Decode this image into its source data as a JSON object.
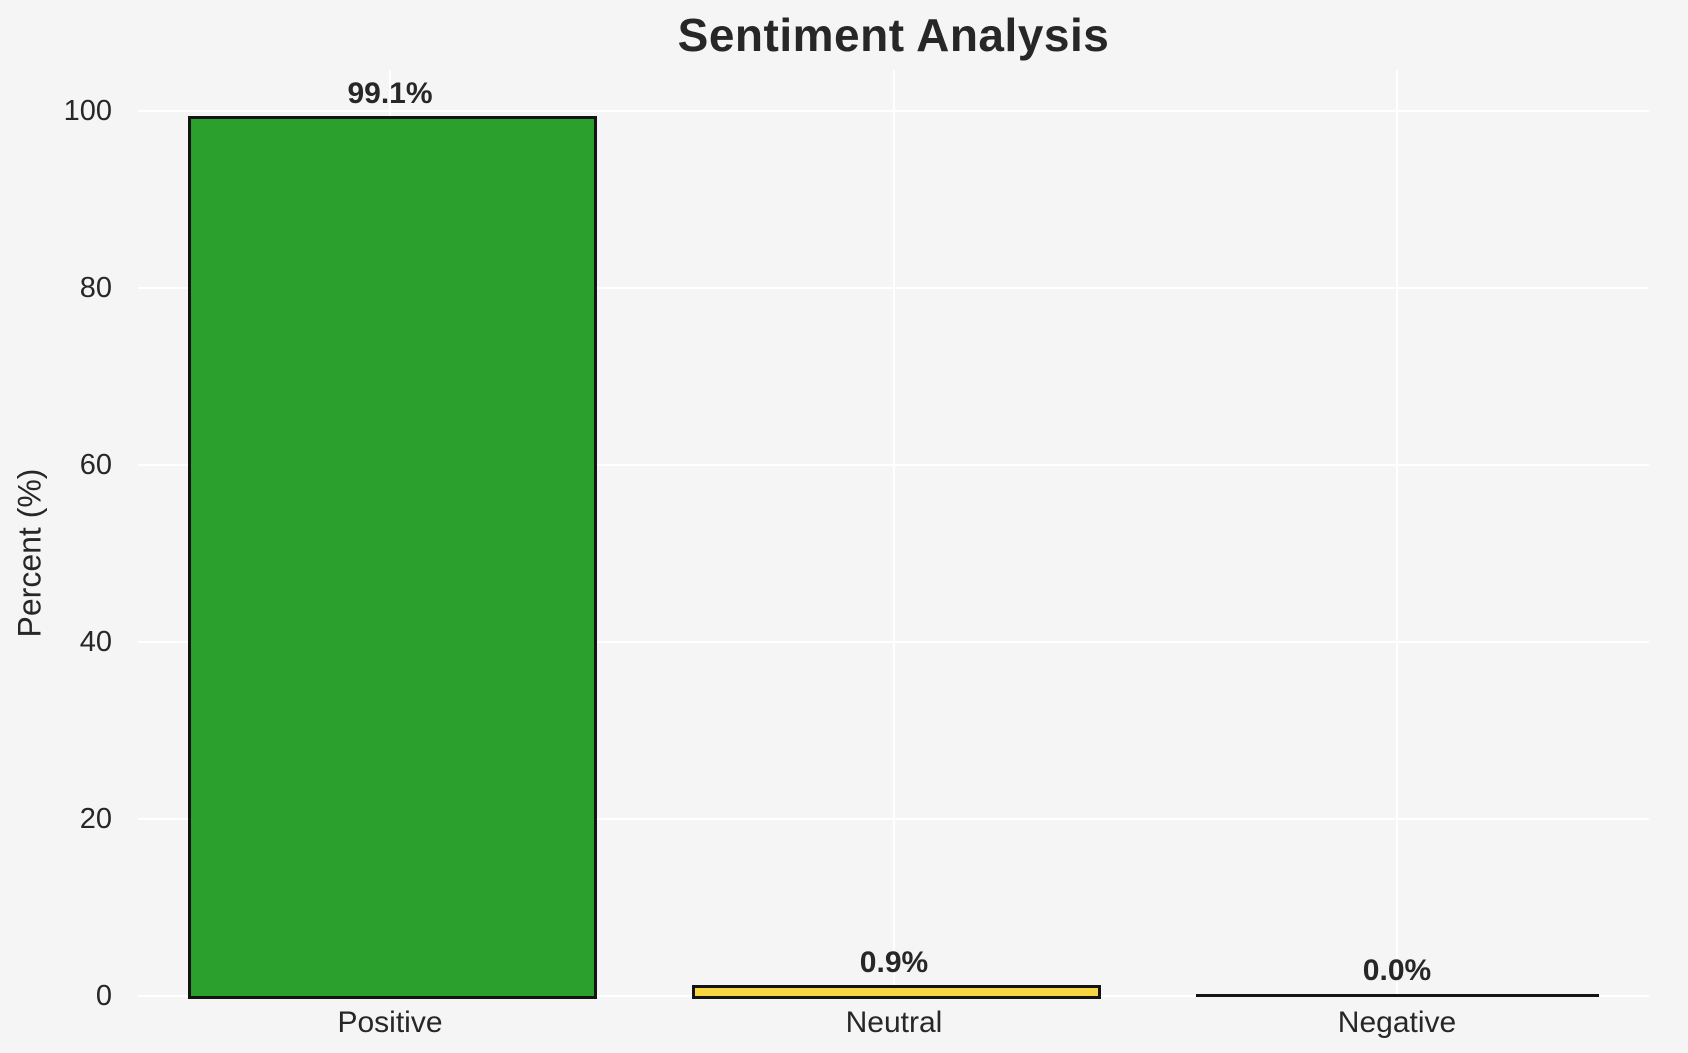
{
  "chart_data": {
    "type": "bar",
    "title": "Sentiment Analysis",
    "xlabel": "",
    "ylabel": "Percent (%)",
    "categories": [
      "Positive",
      "Neutral",
      "Negative"
    ],
    "values": [
      99.1,
      0.9,
      0.0
    ],
    "bar_labels": [
      "99.1%",
      "0.9%",
      "0.0%"
    ],
    "bar_colors": [
      "#2ca02c",
      "#f8d641",
      null
    ],
    "yticks": [
      0,
      20,
      40,
      60,
      80,
      100
    ],
    "ylim": [
      0,
      104.6
    ],
    "grid": true,
    "legend_position": "none"
  },
  "styles": {
    "background": "#f5f5f6",
    "grid_color": "#ffffff",
    "text_color": "#272727",
    "bar_edge_color": "#141414"
  }
}
